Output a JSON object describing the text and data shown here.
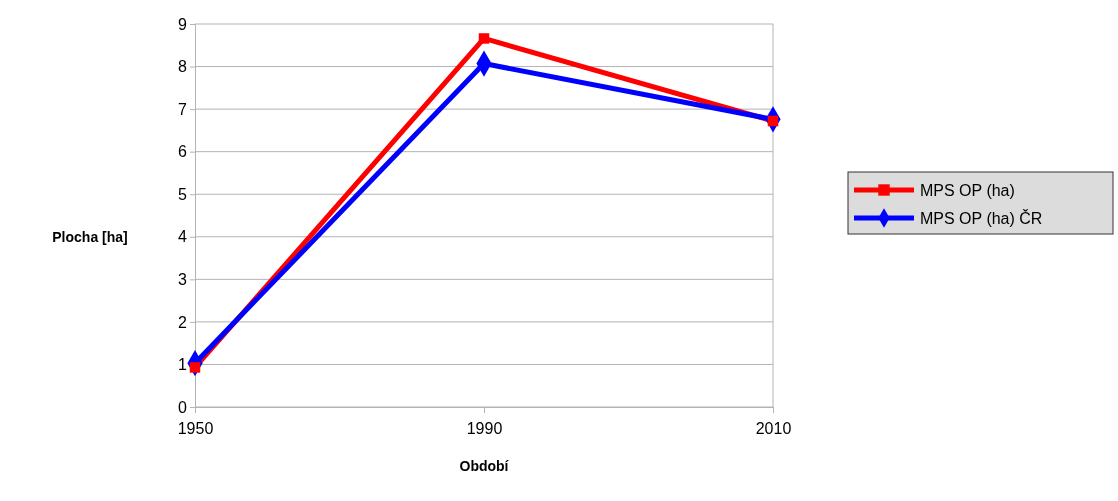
{
  "chart_data": {
    "type": "line",
    "xlabel": "Období",
    "ylabel": "Plocha [ha]",
    "categories": [
      "1950",
      "1990",
      "2010"
    ],
    "series": [
      {
        "name": "MPS OP (ha)",
        "color": "#ff0000",
        "marker": "square",
        "values": [
          0.93,
          8.66,
          6.72
        ]
      },
      {
        "name": "MPS OP (ha) ČR",
        "color": "#0000ff",
        "marker": "diamond",
        "values": [
          1.03,
          8.07,
          6.76
        ]
      }
    ],
    "ylim": [
      0,
      9
    ],
    "yticks": [
      0,
      1,
      2,
      3,
      4,
      5,
      6,
      7,
      8,
      9
    ],
    "grid": "y",
    "legend": "right"
  }
}
